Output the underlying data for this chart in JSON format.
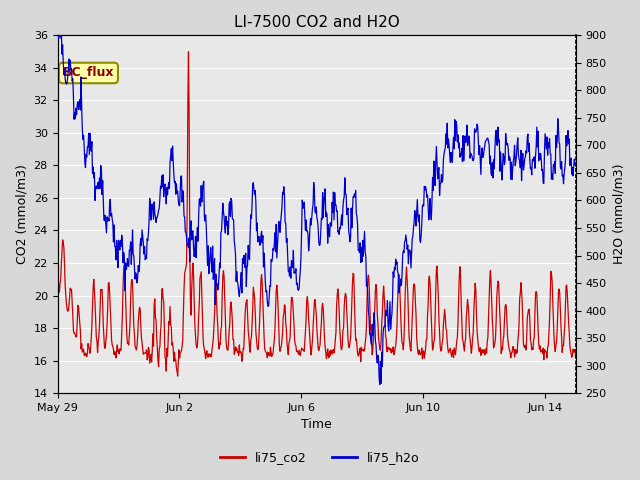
{
  "title": "LI-7500 CO2 and H2O",
  "xlabel": "Time",
  "ylabel_left": "CO2 (mmol/m3)",
  "ylabel_right": "H2O (mmol/m3)",
  "ylim_left": [
    14,
    36
  ],
  "ylim_right": [
    250,
    900
  ],
  "yticks_left": [
    14,
    16,
    18,
    20,
    22,
    24,
    26,
    28,
    30,
    32,
    34,
    36
  ],
  "yticks_right": [
    250,
    300,
    350,
    400,
    450,
    500,
    550,
    600,
    650,
    700,
    750,
    800,
    850,
    900
  ],
  "fig_bg_color": "#d8d8d8",
  "plot_bg_color": "#e8e8e8",
  "line_co2_color": "#cc0000",
  "line_h2o_color": "#0000cc",
  "annotation_text": "BC_flux",
  "legend_labels": [
    "li75_co2",
    "li75_h2o"
  ],
  "x_tick_labels": [
    "May 29",
    "Jun 2",
    "Jun 6",
    "Jun 10",
    "Jun 14"
  ],
  "x_tick_positions": [
    0,
    4,
    8,
    12,
    16
  ]
}
